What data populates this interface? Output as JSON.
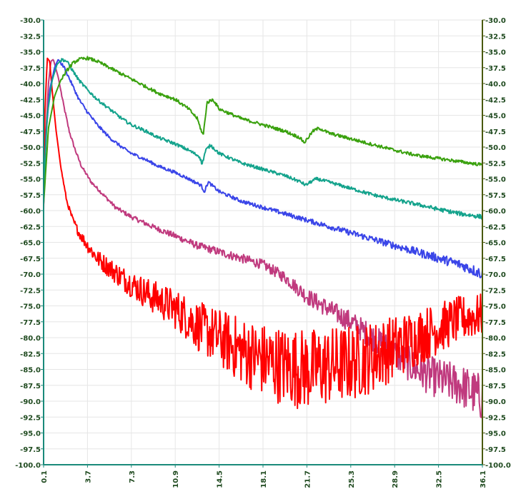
{
  "chart_data": {
    "type": "line",
    "title": "",
    "xlabel": "",
    "ylabel": "",
    "xlim": [
      0.1,
      36.1
    ],
    "ylim": [
      -100.0,
      -30.0
    ],
    "grid": true,
    "x_ticks": [
      "0.1",
      "3.7",
      "7.3",
      "10.9",
      "14.5",
      "18.1",
      "21.7",
      "25.3",
      "28.9",
      "32.5",
      "36.1"
    ],
    "y_ticks": [
      "-30.0",
      "-32.5",
      "-35.0",
      "-37.5",
      "-40.0",
      "-42.5",
      "-45.0",
      "-47.5",
      "-50.0",
      "-52.5",
      "-55.0",
      "-57.5",
      "-60.0",
      "-62.5",
      "-65.0",
      "-67.5",
      "-70.0",
      "-72.5",
      "-75.0",
      "-77.5",
      "-80.0",
      "-82.5",
      "-85.0",
      "-87.5",
      "-90.0",
      "-92.5",
      "-95.0",
      "-97.5",
      "-100.0"
    ],
    "colors": {
      "left_axis": "#1a8a7a",
      "right_axis": "#4a5a10",
      "tick_text": "#1f4a1f"
    },
    "series": [
      {
        "color": "#c03a7e",
        "x": [
          0.1,
          0.3,
          0.5,
          0.7,
          0.9,
          1.3,
          1.7,
          2.2,
          2.7,
          3.2,
          4.0,
          5.0,
          6.0,
          7.3,
          9.0,
          10.9,
          12.7,
          14.5,
          16.3,
          18.1,
          19.9,
          21.7,
          23.5,
          25.3,
          27.1,
          28.9,
          30.7,
          32.5,
          34.3,
          36.1
        ],
        "values": [
          -59.0,
          -47.5,
          -40.0,
          -36.5,
          -36.2,
          -39.0,
          -43.0,
          -47.5,
          -50.5,
          -53.0,
          -55.5,
          -57.5,
          -59.5,
          -61.0,
          -62.5,
          -64.0,
          -65.5,
          -66.5,
          -67.5,
          -68.5,
          -70.5,
          -73.5,
          -75.5,
          -77.5,
          -80.0,
          -82.5,
          -85.0,
          -86.5,
          -87.5,
          -89.5
        ]
      },
      {
        "color": "#ff0000",
        "x": [
          0.1,
          0.2,
          0.4,
          0.6,
          0.8,
          1.1,
          1.5,
          2.0,
          2.5,
          3.0,
          3.7,
          4.5,
          5.5,
          6.5,
          7.3,
          8.5,
          9.5,
          10.9,
          12.0,
          13.0,
          14.5,
          16.3,
          18.1,
          19.9,
          21.7,
          23.5,
          25.3,
          27.1,
          28.9,
          30.7,
          32.5,
          34.3,
          36.1
        ],
        "values": [
          -60.0,
          -45.0,
          -36.0,
          -36.5,
          -41.0,
          -47.0,
          -53.0,
          -58.5,
          -61.5,
          -63.5,
          -65.5,
          -67.5,
          -69.0,
          -70.5,
          -71.5,
          -73.0,
          -74.0,
          -75.5,
          -77.0,
          -78.5,
          -80.0,
          -82.0,
          -83.5,
          -84.5,
          -85.0,
          -84.5,
          -84.0,
          -83.0,
          -81.5,
          -80.0,
          -78.5,
          -77.0,
          -76.5
        ]
      },
      {
        "color": "#3a45e8",
        "x": [
          0.1,
          0.3,
          0.6,
          1.0,
          1.3,
          1.8,
          2.4,
          3.0,
          3.7,
          4.5,
          5.5,
          6.5,
          7.3,
          8.5,
          9.5,
          10.9,
          12.0,
          13.0,
          13.3,
          13.6,
          14.5,
          16.3,
          18.1,
          19.9,
          21.7,
          23.5,
          25.3,
          27.1,
          28.9,
          30.7,
          32.5,
          34.3,
          36.1
        ],
        "values": [
          -59.0,
          -48.0,
          -41.0,
          -37.5,
          -36.2,
          -37.5,
          -40.0,
          -42.5,
          -44.5,
          -46.5,
          -48.5,
          -50.0,
          -51.0,
          -52.0,
          -53.0,
          -54.0,
          -55.0,
          -56.0,
          -57.0,
          -55.5,
          -57.0,
          -58.5,
          -59.5,
          -60.5,
          -61.5,
          -62.5,
          -63.5,
          -64.5,
          -65.5,
          -66.5,
          -67.5,
          -68.5,
          -70.0
        ]
      },
      {
        "color": "#14a38c",
        "x": [
          0.1,
          0.4,
          0.8,
          1.2,
          1.6,
          2.0,
          2.5,
          3.0,
          3.7,
          4.5,
          5.5,
          6.5,
          7.3,
          8.5,
          9.5,
          10.9,
          12.0,
          12.9,
          13.1,
          13.4,
          13.8,
          14.5,
          16.3,
          18.1,
          19.9,
          21.2,
          21.6,
          22.0,
          22.5,
          23.5,
          25.3,
          27.1,
          28.9,
          30.7,
          32.5,
          34.3,
          36.1
        ],
        "values": [
          -57.0,
          -45.0,
          -39.5,
          -37.0,
          -36.2,
          -36.5,
          -38.0,
          -39.5,
          -41.0,
          -42.5,
          -44.0,
          -45.5,
          -46.5,
          -47.5,
          -48.5,
          -49.5,
          -50.5,
          -51.5,
          -52.7,
          -50.5,
          -49.7,
          -51.0,
          -52.5,
          -53.5,
          -54.5,
          -55.5,
          -56.0,
          -55.5,
          -55.0,
          -55.5,
          -56.5,
          -57.5,
          -58.3,
          -59.0,
          -59.8,
          -60.5,
          -61.0
        ]
      },
      {
        "color": "#3aa10e",
        "x": [
          0.1,
          0.5,
          1.0,
          1.5,
          2.0,
          2.5,
          3.0,
          3.7,
          4.5,
          5.5,
          6.5,
          7.3,
          8.5,
          9.5,
          10.9,
          12.0,
          12.7,
          13.0,
          13.2,
          13.5,
          14.0,
          14.5,
          16.3,
          18.1,
          19.9,
          21.1,
          21.5,
          21.8,
          22.2,
          22.7,
          23.5,
          25.3,
          27.1,
          28.9,
          30.7,
          32.5,
          34.3,
          36.1
        ],
        "values": [
          -59.0,
          -47.0,
          -42.0,
          -39.5,
          -38.0,
          -36.8,
          -36.2,
          -36.0,
          -36.5,
          -37.5,
          -38.5,
          -39.3,
          -40.5,
          -41.5,
          -42.5,
          -44.0,
          -45.5,
          -47.2,
          -48.2,
          -43.0,
          -42.5,
          -44.0,
          -45.5,
          -46.5,
          -47.5,
          -48.5,
          -49.3,
          -48.5,
          -47.5,
          -47.0,
          -47.8,
          -48.7,
          -49.6,
          -50.5,
          -51.3,
          -51.8,
          -52.3,
          -52.8
        ]
      }
    ]
  }
}
